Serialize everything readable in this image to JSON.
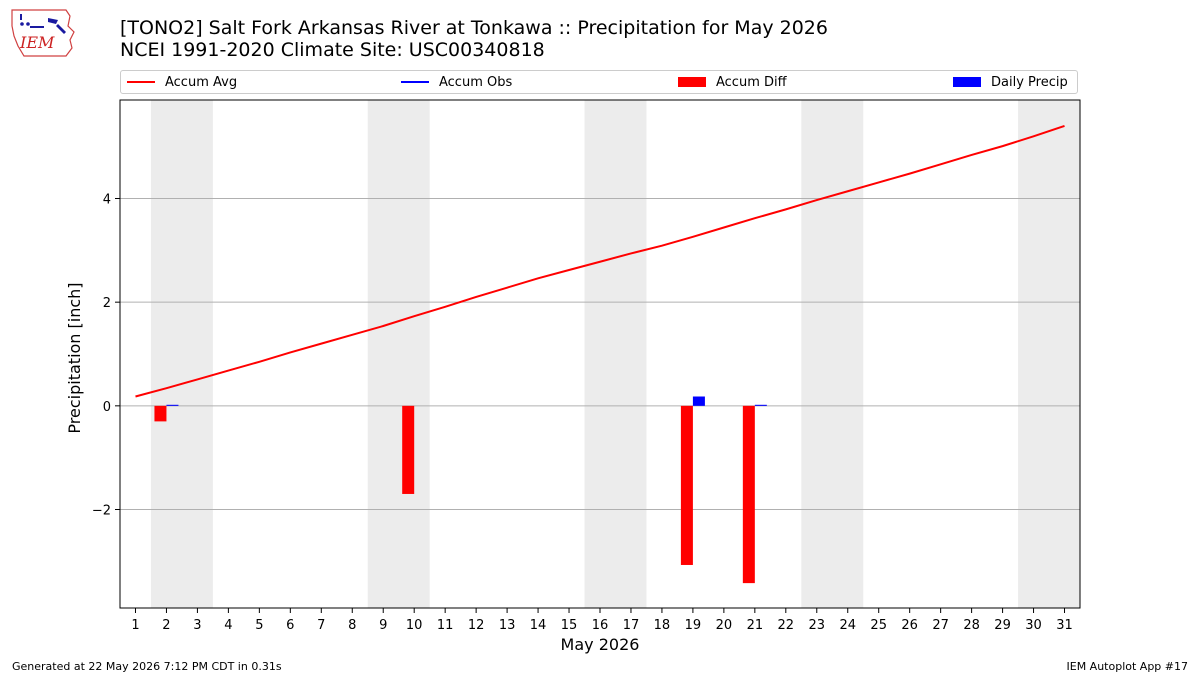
{
  "header": {
    "title_line1": "[TONO2] Salt Fork Arkansas River at Tonkawa :: Precipitation for May 2026",
    "title_line2": "NCEI 1991-2020 Climate Site: USC00340818",
    "logo_text": "IEM"
  },
  "legend": {
    "items": [
      {
        "label": "Accum Avg",
        "color": "#ff0000",
        "kind": "line"
      },
      {
        "label": "Accum Obs",
        "color": "#0000ff",
        "kind": "line"
      },
      {
        "label": "Accum Diff",
        "color": "#ff0000",
        "kind": "bar"
      },
      {
        "label": "Daily Precip",
        "color": "#0000ff",
        "kind": "bar"
      }
    ]
  },
  "footer": {
    "left": "Generated at 22 May 2026 7:12 PM CDT in 0.31s",
    "right": "IEM Autoplot App #17"
  },
  "chart_data": {
    "type": "bar",
    "xlabel": "May 2026",
    "ylabel": "Precipitation [inch]",
    "xlim": [
      0.5,
      31.5
    ],
    "ylim": [
      -3.9,
      5.9
    ],
    "yticks": [
      -2,
      0,
      2,
      4
    ],
    "xticks": [
      1,
      2,
      3,
      4,
      5,
      6,
      7,
      8,
      9,
      10,
      11,
      12,
      13,
      14,
      15,
      16,
      17,
      18,
      19,
      20,
      21,
      22,
      23,
      24,
      25,
      26,
      27,
      28,
      29,
      30,
      31
    ],
    "grid": "horizontal",
    "legend_position": "top",
    "weekend_shading": [
      [
        1.5,
        3.5
      ],
      [
        8.5,
        10.5
      ],
      [
        15.5,
        17.5
      ],
      [
        22.5,
        24.5
      ],
      [
        29.5,
        31.5
      ]
    ],
    "series": [
      {
        "name": "Accum Avg",
        "kind": "line",
        "color": "#ff0000",
        "x": [
          1,
          2,
          3,
          4,
          5,
          6,
          7,
          8,
          9,
          10,
          11,
          12,
          13,
          14,
          15,
          16,
          17,
          18,
          19,
          20,
          21,
          22,
          23,
          24,
          25,
          26,
          27,
          28,
          29,
          30,
          31
        ],
        "values": [
          0.18,
          0.34,
          0.51,
          0.68,
          0.85,
          1.03,
          1.2,
          1.37,
          1.54,
          1.73,
          1.91,
          2.1,
          2.28,
          2.46,
          2.62,
          2.78,
          2.94,
          3.09,
          3.26,
          3.44,
          3.62,
          3.79,
          3.97,
          4.14,
          4.31,
          4.48,
          4.66,
          4.84,
          5.01,
          5.2,
          5.4
        ]
      },
      {
        "name": "Accum Diff",
        "kind": "bar",
        "color": "#ff0000",
        "x": [
          2,
          10,
          19,
          21
        ],
        "values": [
          -0.3,
          -1.7,
          -3.07,
          -3.42
        ]
      },
      {
        "name": "Daily Precip",
        "kind": "bar",
        "color": "#0000ff",
        "x": [
          2,
          19,
          21
        ],
        "values": [
          0.02,
          0.18,
          0.02
        ]
      }
    ]
  }
}
